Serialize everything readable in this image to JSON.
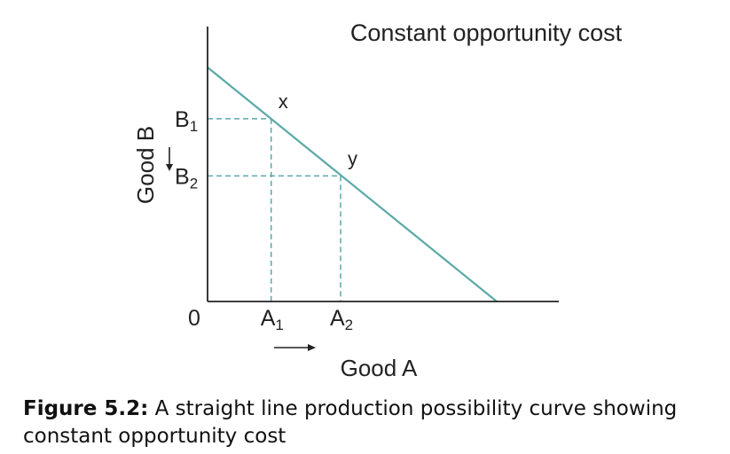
{
  "chart_data": {
    "type": "line",
    "title": "Constant opportunity cost",
    "xlabel": "Good A",
    "ylabel": "Good B",
    "origin_label": "0",
    "xlim": [
      0,
      10
    ],
    "ylim": [
      0,
      10
    ],
    "series": [
      {
        "x": [
          0,
          10
        ],
        "y": [
          8.2,
          0
        ]
      }
    ],
    "points": [
      {
        "label": "x",
        "x": 2.2,
        "y": 6.4,
        "x_tick": "A",
        "x_tick_sub": "1",
        "y_tick": "B",
        "y_tick_sub": "1"
      },
      {
        "label": "y",
        "x": 4.6,
        "y": 4.4,
        "x_tick": "A",
        "x_tick_sub": "2",
        "y_tick": "B",
        "y_tick_sub": "2"
      }
    ],
    "colors": {
      "line": "#5aa8a8",
      "guides": "#5aa8a8",
      "axes": "#222222"
    }
  },
  "caption": {
    "label": "Figure 5.2:",
    "text": " A straight line production possibility curve showing constant opportunity cost"
  }
}
